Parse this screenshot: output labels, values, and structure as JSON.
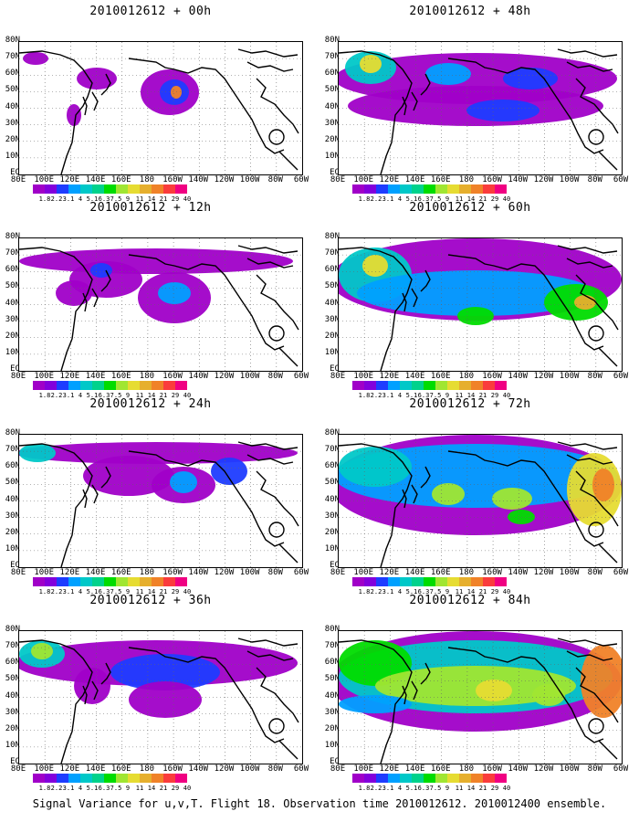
{
  "panels": [
    {
      "title": "2010012612 + 00h"
    },
    {
      "title": "2010012612 + 48h"
    },
    {
      "title": "2010012612 + 12h"
    },
    {
      "title": "2010012612 + 60h"
    },
    {
      "title": "2010012612 + 24h"
    },
    {
      "title": "2010012612 + 72h"
    },
    {
      "title": "2010012612 + 36h"
    },
    {
      "title": "2010012612 + 84h"
    }
  ],
  "lat_labels": [
    "80N",
    "70N",
    "60N",
    "50N",
    "40N",
    "30N",
    "20N",
    "10N",
    "EQ"
  ],
  "lon_labels": [
    "80E",
    "100E",
    "120E",
    "140E",
    "160E",
    "180",
    "160W",
    "140W",
    "120W",
    "100W",
    "80W",
    "60W"
  ],
  "colorbar": {
    "labels": [
      "1.8",
      "2.2",
      "3.1",
      "4",
      "5.1",
      "6.3",
      "7.5",
      "9",
      "11",
      "14",
      "21",
      "29",
      "40"
    ],
    "colors": [
      "#a000c8",
      "#8200dc",
      "#1e3cff",
      "#00a0ff",
      "#00c8c8",
      "#00d28c",
      "#00dc00",
      "#a0e632",
      "#e6dc32",
      "#e6af2d",
      "#f08228",
      "#fa3c3c",
      "#f00082"
    ]
  },
  "footer": "Signal Variance for u,v,T. Flight 18. Observation time 2010012612. 2010012400 ensemble."
}
